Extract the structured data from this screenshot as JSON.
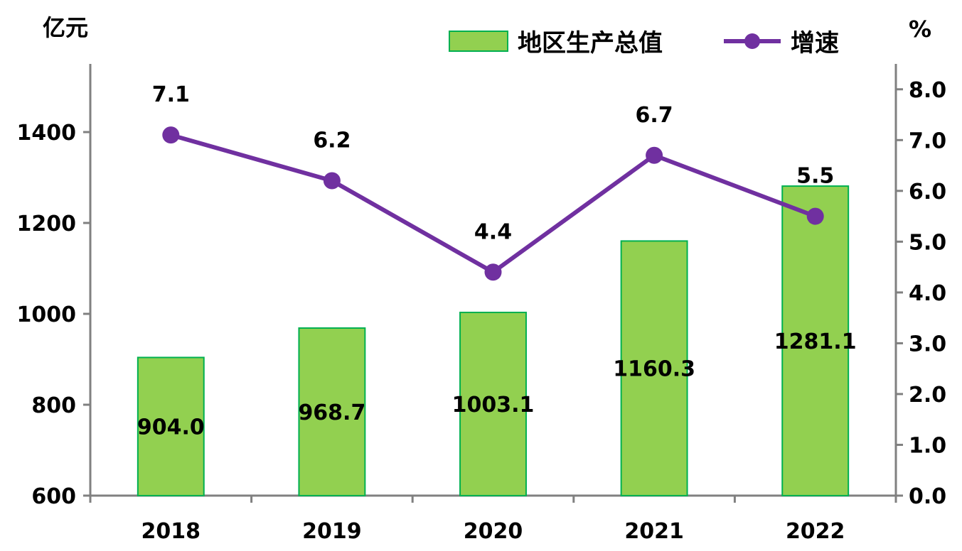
{
  "chart_data": {
    "type": "bar+line",
    "categories": [
      "2018",
      "2019",
      "2020",
      "2021",
      "2022"
    ],
    "series": [
      {
        "name": "地区生产总值",
        "type": "bar",
        "axis": "left",
        "values": [
          904.0,
          968.7,
          1003.1,
          1160.3,
          1281.1
        ],
        "labels": [
          "904.0",
          "968.7",
          "1003.1",
          "1160.3",
          "1281.1"
        ],
        "color": "#92D050",
        "border_color": "#00B050"
      },
      {
        "name": "增速",
        "type": "line",
        "axis": "right",
        "values": [
          7.1,
          6.2,
          4.4,
          6.7,
          5.5
        ],
        "labels": [
          "7.1",
          "6.2",
          "4.4",
          "6.7",
          "5.5"
        ],
        "color": "#7030A0"
      }
    ],
    "y_left": {
      "unit": "亿元",
      "min": 600,
      "max": 1550,
      "ticks": [
        600,
        800,
        1000,
        1200,
        1400
      ],
      "tick_labels": [
        "600",
        "800",
        "1000",
        "1200",
        "1400"
      ]
    },
    "y_right": {
      "unit": "%",
      "min": 0,
      "max": 8.5,
      "ticks": [
        0,
        1,
        2,
        3,
        4,
        5,
        6,
        7,
        8
      ],
      "tick_labels": [
        "0.0",
        "1.0",
        "2.0",
        "3.0",
        "4.0",
        "5.0",
        "6.0",
        "7.0",
        "8.0"
      ]
    },
    "legend": {
      "position": "top-right"
    },
    "grid": false,
    "axis_color": "#808080"
  }
}
